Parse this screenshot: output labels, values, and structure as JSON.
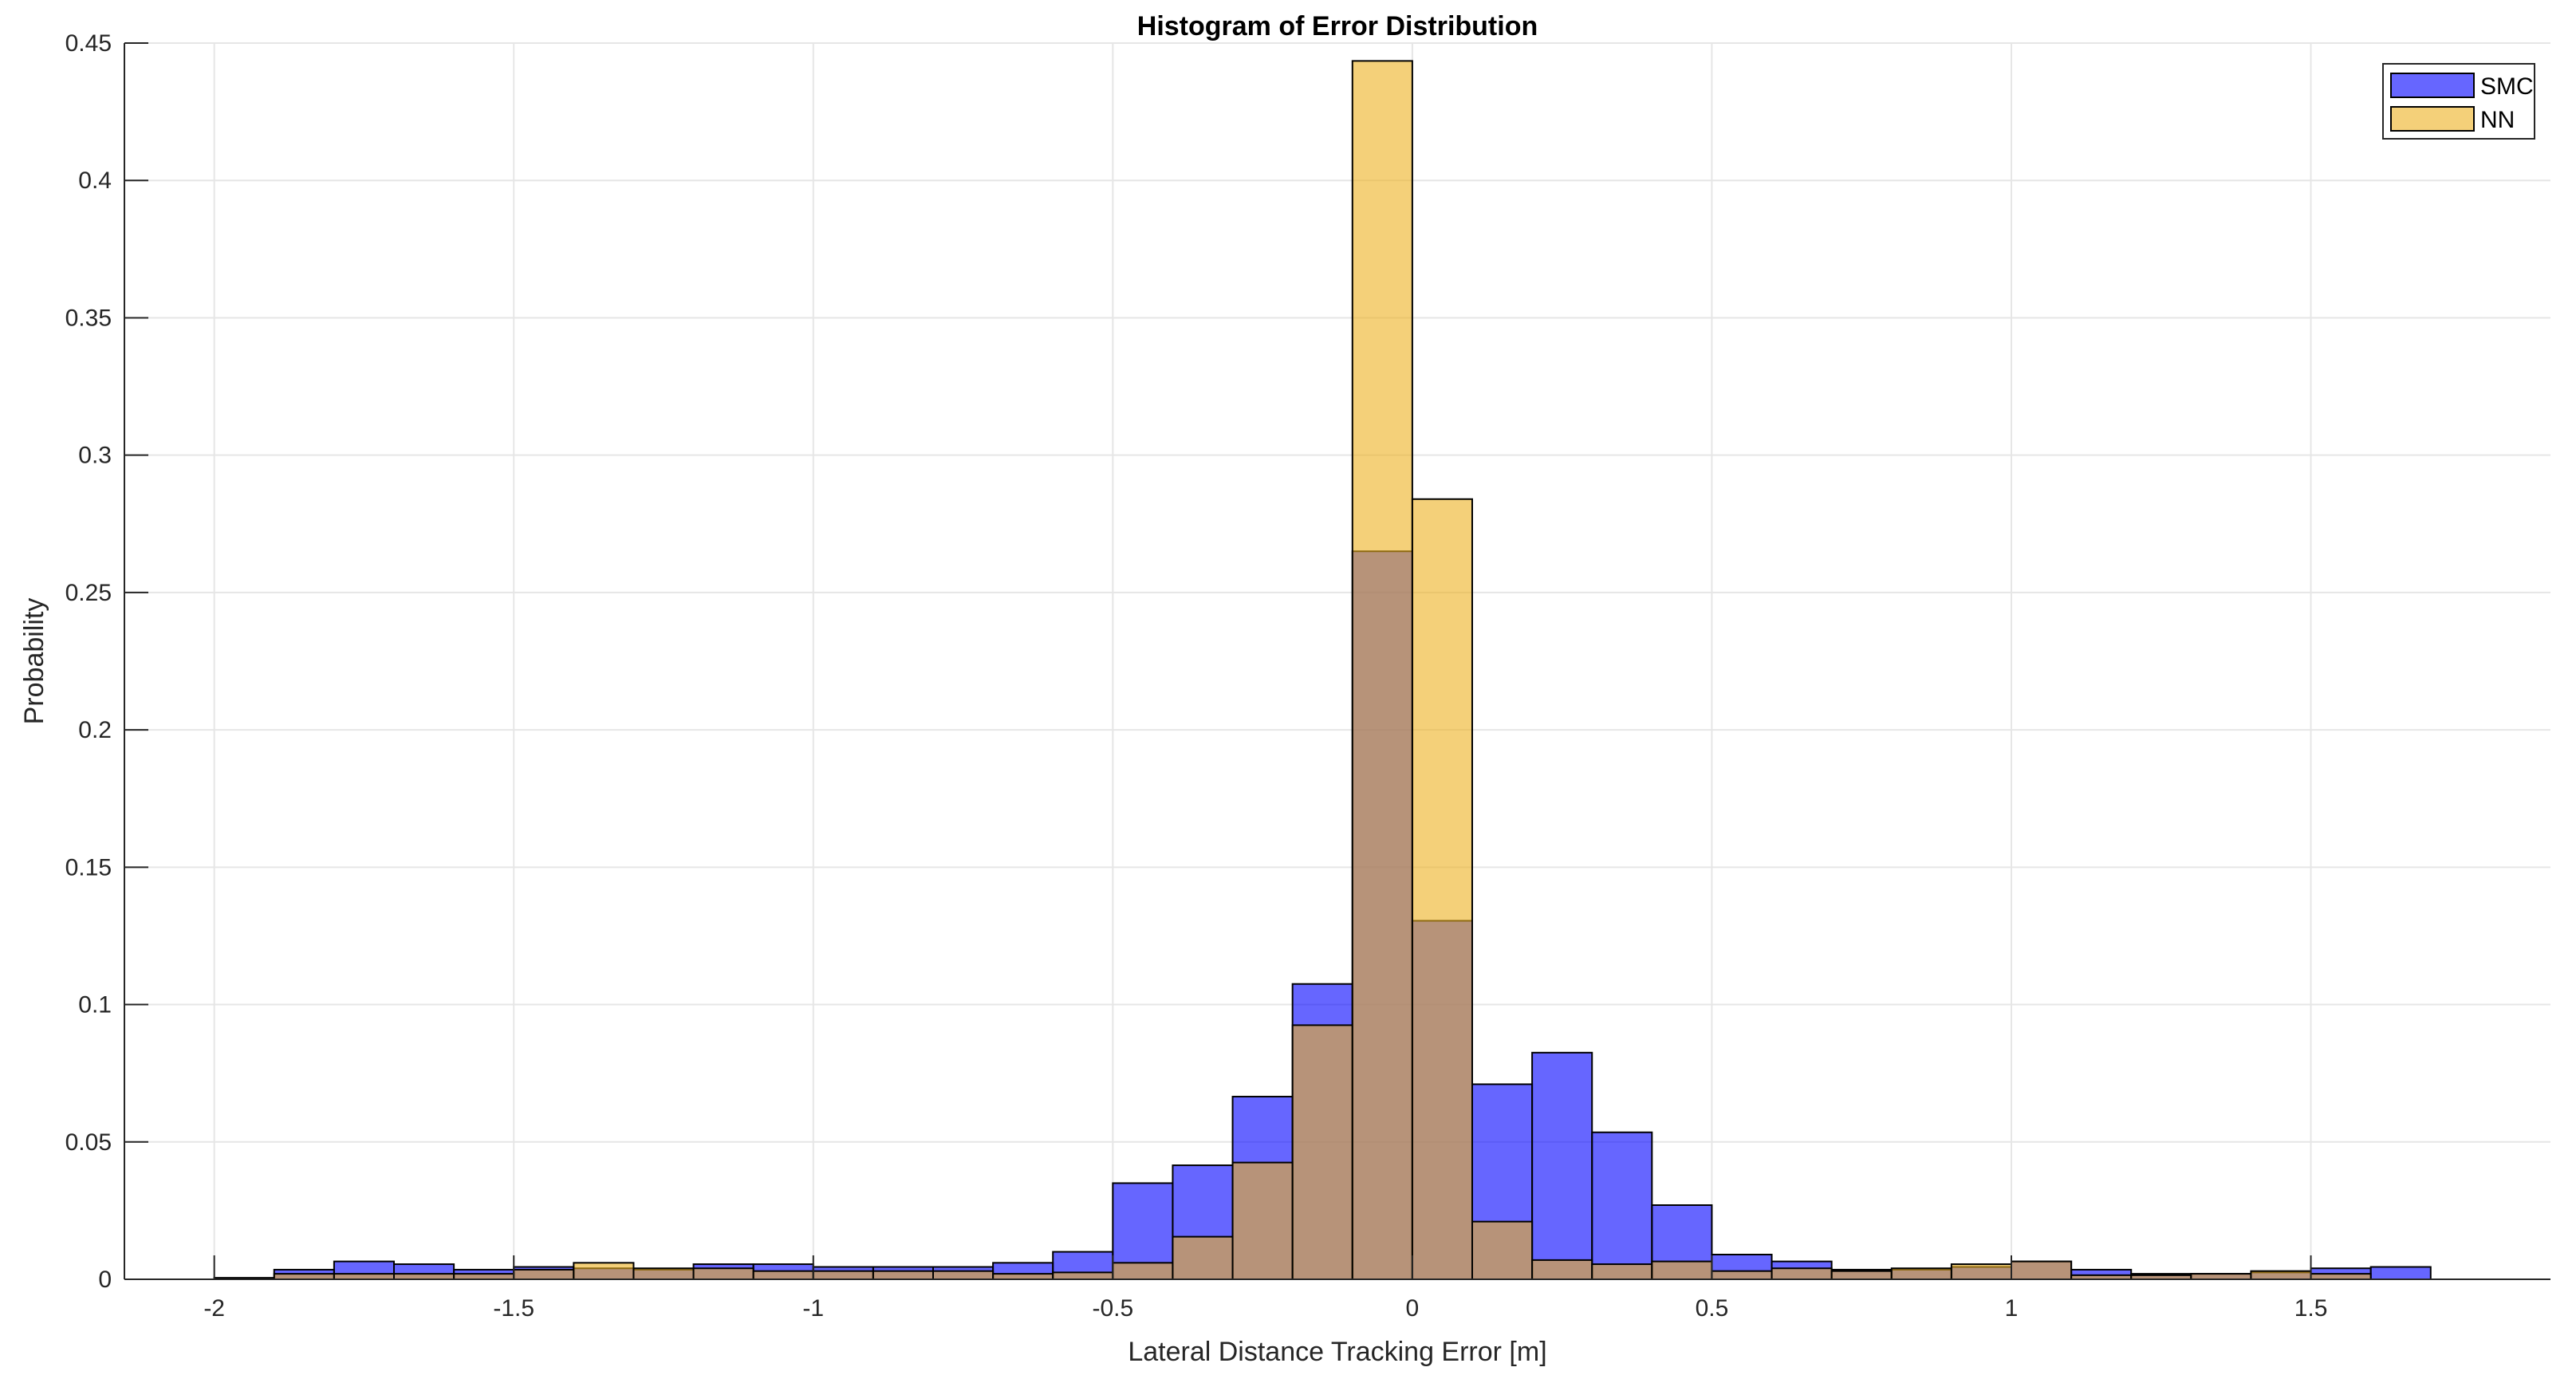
{
  "chart_data": {
    "type": "bar",
    "title": "Histogram of Error Distribution",
    "xlabel": "Lateral Distance Tracking Error [m]",
    "ylabel": "Probability",
    "xlim": [
      -2.15,
      1.9
    ],
    "ylim": [
      0,
      0.45
    ],
    "xticks": [
      -2,
      -1.5,
      -1,
      -0.5,
      0,
      0.5,
      1,
      1.5
    ],
    "xtick_labels": [
      "-2",
      "-1.5",
      "-1",
      "-0.5",
      "0",
      "0.5",
      "1",
      "1.5"
    ],
    "yticks": [
      0,
      0.05,
      0.1,
      0.15,
      0.2,
      0.25,
      0.3,
      0.35,
      0.4,
      0.45
    ],
    "ytick_labels": [
      "0",
      "0.05",
      "0.1",
      "0.15",
      "0.2",
      "0.25",
      "0.3",
      "0.35",
      "0.4",
      "0.45"
    ],
    "grid": true,
    "legend_position": "top-right",
    "bin_edges": [
      -2.0,
      -1.9,
      -1.8,
      -1.7,
      -1.6,
      -1.5,
      -1.4,
      -1.3,
      -1.2,
      -1.1,
      -1.0,
      -0.9,
      -0.8,
      -0.7,
      -0.6,
      -0.5,
      -0.4,
      -0.3,
      -0.2,
      -0.1,
      0.0,
      0.1,
      0.2,
      0.3,
      0.4,
      0.5,
      0.6,
      0.7,
      0.8,
      0.9,
      1.0,
      1.1,
      1.2,
      1.3,
      1.4,
      1.5,
      1.6,
      1.7
    ],
    "series": [
      {
        "name": "SMC",
        "color": "#0000FF",
        "values": [
          0.0005,
          0.0035,
          0.0065,
          0.0055,
          0.0035,
          0.0045,
          0.004,
          0.0035,
          0.0055,
          0.0055,
          0.0045,
          0.0045,
          0.0045,
          0.006,
          0.01,
          0.035,
          0.0415,
          0.0665,
          0.1075,
          0.265,
          0.1305,
          0.071,
          0.0825,
          0.0535,
          0.027,
          0.009,
          0.0065,
          0.0035,
          0.0035,
          0.0045,
          0.0065,
          0.0035,
          0.002,
          0.002,
          0.0025,
          0.004,
          0.0045
        ]
      },
      {
        "name": "NN",
        "color": "#EDB120",
        "values": [
          0.0005,
          0.002,
          0.002,
          0.002,
          0.002,
          0.0035,
          0.006,
          0.004,
          0.004,
          0.003,
          0.003,
          0.003,
          0.003,
          0.002,
          0.0025,
          0.006,
          0.0155,
          0.0425,
          0.0925,
          0.4435,
          0.284,
          0.021,
          0.007,
          0.0055,
          0.0065,
          0.003,
          0.004,
          0.003,
          0.004,
          0.0055,
          0.0065,
          0.0015,
          0.0015,
          0.002,
          0.003,
          0.002,
          0.0
        ]
      }
    ]
  }
}
